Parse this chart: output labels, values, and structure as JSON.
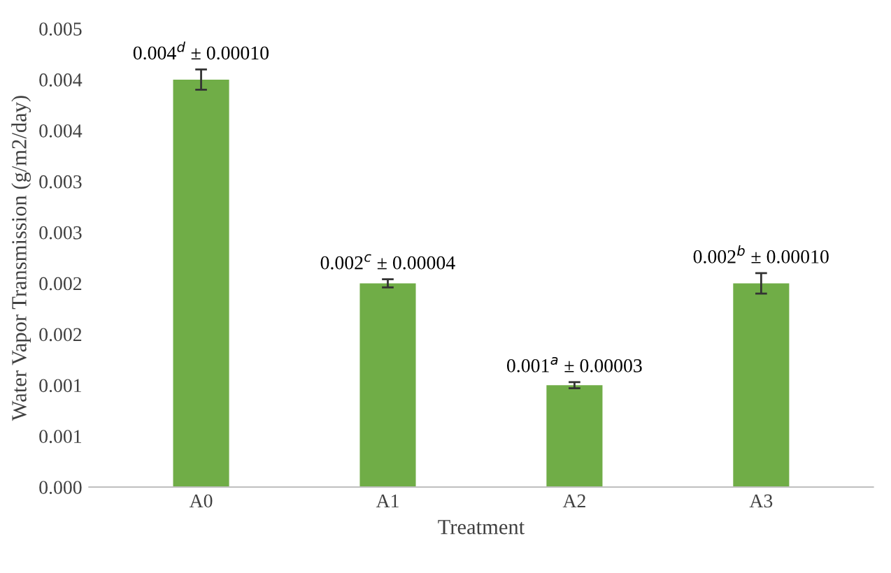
{
  "chart_data": {
    "type": "bar",
    "xlabel": "Treatment",
    "ylabel": "Water Vapor Transmission (g/m2/day)",
    "categories": [
      "A0",
      "A1",
      "A2",
      "A3"
    ],
    "values": [
      0.004,
      0.002,
      0.001,
      0.002
    ],
    "errors": [
      0.0001,
      4e-05,
      3e-05,
      0.0001
    ],
    "value_labels": [
      "0.004$^{d}$ ± 0.00010",
      "0.002$^{c}$ ± 0.00004",
      "0.001$^{a}$ ± 0.00003",
      "0.002$^{b}$ ± 0.00010"
    ],
    "color": "#70ad47",
    "ylim": [
      0,
      0.0045
    ],
    "yticks": [
      {
        "value": 0,
        "label": "0.000"
      },
      {
        "value": 0.0005,
        "label": "0.001"
      },
      {
        "value": 0.001,
        "label": "0.001"
      },
      {
        "value": 0.0015,
        "label": "0.002"
      },
      {
        "value": 0.002,
        "label": "0.002"
      },
      {
        "value": 0.0025,
        "label": "0.003"
      },
      {
        "value": 0.003,
        "label": "0.003"
      },
      {
        "value": 0.0035,
        "label": "0.004"
      },
      {
        "value": 0.004,
        "label": "0.004"
      },
      {
        "value": 0.0045,
        "label": "0.005"
      }
    ],
    "grid": false,
    "legend": false
  }
}
